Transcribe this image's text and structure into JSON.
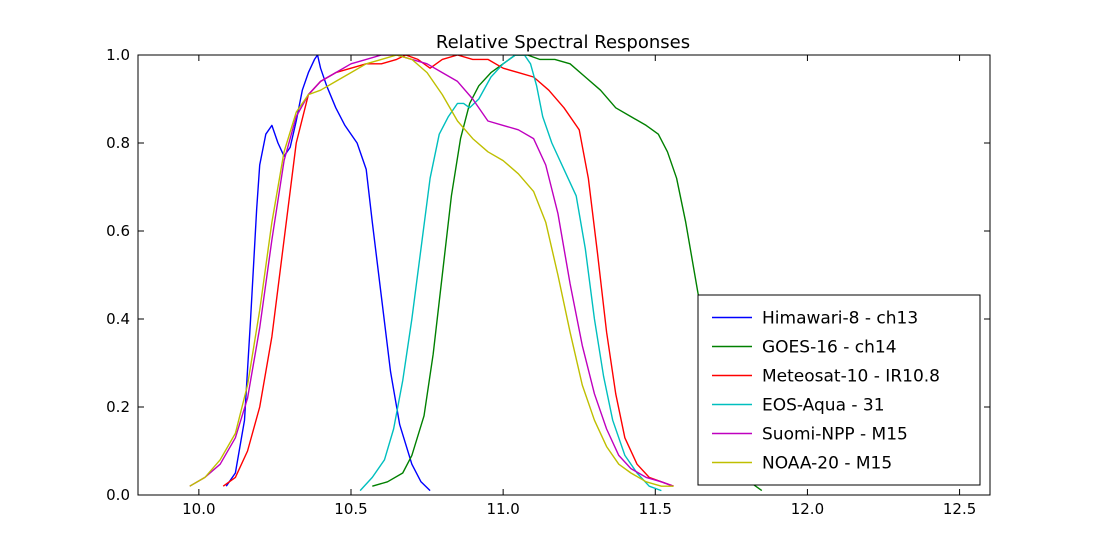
{
  "chart_data": {
    "type": "line",
    "title": "Relative Spectral Responses",
    "xlabel": "",
    "ylabel": "",
    "xlim": [
      9.8,
      12.6
    ],
    "ylim": [
      0.0,
      1.0
    ],
    "xticks": [
      10.0,
      10.5,
      11.0,
      11.5,
      12.0,
      12.5
    ],
    "xtick_labels": [
      "10.0",
      "10.5",
      "11.0",
      "11.5",
      "12.0",
      "12.5"
    ],
    "yticks": [
      0.0,
      0.2,
      0.4,
      0.6,
      0.8,
      1.0
    ],
    "ytick_labels": [
      "0.0",
      "0.2",
      "0.4",
      "0.6",
      "0.8",
      "1.0"
    ],
    "grid": false,
    "legend_position": "lower-right",
    "series": [
      {
        "name": "Himawari-8 - ch13",
        "color": "#0000ff",
        "x": [
          10.09,
          10.12,
          10.15,
          10.17,
          10.19,
          10.2,
          10.22,
          10.24,
          10.26,
          10.28,
          10.3,
          10.32,
          10.34,
          10.36,
          10.38,
          10.39,
          10.4,
          10.42,
          10.45,
          10.48,
          10.52,
          10.55,
          10.57,
          10.6,
          10.63,
          10.66,
          10.7,
          10.73,
          10.76
        ],
        "y": [
          0.02,
          0.05,
          0.17,
          0.4,
          0.65,
          0.75,
          0.82,
          0.84,
          0.8,
          0.77,
          0.79,
          0.85,
          0.92,
          0.96,
          0.99,
          1.0,
          0.97,
          0.93,
          0.88,
          0.84,
          0.8,
          0.74,
          0.62,
          0.45,
          0.28,
          0.16,
          0.07,
          0.03,
          0.01
        ]
      },
      {
        "name": "GOES-16 - ch14",
        "color": "#008000",
        "x": [
          10.57,
          10.62,
          10.67,
          10.7,
          10.74,
          10.77,
          10.8,
          10.83,
          10.86,
          10.89,
          10.92,
          10.96,
          11.0,
          11.04,
          11.08,
          11.12,
          11.17,
          11.22,
          11.27,
          11.32,
          11.37,
          11.42,
          11.47,
          11.51,
          11.54,
          11.57,
          11.6,
          11.63,
          11.66,
          11.69,
          11.72,
          11.75,
          11.78,
          11.81,
          11.85
        ],
        "y": [
          0.02,
          0.03,
          0.05,
          0.09,
          0.18,
          0.32,
          0.5,
          0.68,
          0.81,
          0.89,
          0.93,
          0.96,
          0.98,
          1.0,
          1.0,
          0.99,
          0.99,
          0.98,
          0.95,
          0.92,
          0.88,
          0.86,
          0.84,
          0.82,
          0.78,
          0.72,
          0.62,
          0.5,
          0.38,
          0.27,
          0.18,
          0.1,
          0.05,
          0.03,
          0.01
        ]
      },
      {
        "name": "Meteosat-10 - IR10.8",
        "color": "#ff0000",
        "x": [
          10.08,
          10.12,
          10.16,
          10.2,
          10.24,
          10.28,
          10.32,
          10.36,
          10.4,
          10.45,
          10.5,
          10.55,
          10.6,
          10.65,
          10.68,
          10.72,
          10.76,
          10.8,
          10.85,
          10.9,
          10.95,
          11.0,
          11.05,
          11.1,
          11.15,
          11.2,
          11.25,
          11.28,
          11.31,
          11.34,
          11.37,
          11.4,
          11.44,
          11.48,
          11.52,
          11.56
        ],
        "y": [
          0.02,
          0.04,
          0.1,
          0.2,
          0.36,
          0.58,
          0.8,
          0.91,
          0.94,
          0.96,
          0.97,
          0.98,
          0.98,
          0.99,
          1.0,
          0.99,
          0.97,
          0.99,
          1.0,
          0.99,
          0.99,
          0.97,
          0.96,
          0.95,
          0.92,
          0.88,
          0.83,
          0.72,
          0.55,
          0.37,
          0.23,
          0.13,
          0.07,
          0.04,
          0.03,
          0.02
        ]
      },
      {
        "name": "EOS-Aqua - 31",
        "color": "#00bfbf",
        "x": [
          10.53,
          10.57,
          10.61,
          10.64,
          10.67,
          10.7,
          10.73,
          10.76,
          10.79,
          10.82,
          10.85,
          10.87,
          10.89,
          10.92,
          10.96,
          11.0,
          11.04,
          11.07,
          11.09,
          11.11,
          11.13,
          11.16,
          11.2,
          11.24,
          11.27,
          11.3,
          11.33,
          11.36,
          11.4,
          11.44,
          11.48,
          11.52
        ],
        "y": [
          0.01,
          0.04,
          0.08,
          0.15,
          0.26,
          0.4,
          0.56,
          0.72,
          0.82,
          0.86,
          0.89,
          0.89,
          0.88,
          0.9,
          0.95,
          0.98,
          1.0,
          1.0,
          0.98,
          0.93,
          0.86,
          0.8,
          0.74,
          0.68,
          0.56,
          0.4,
          0.27,
          0.17,
          0.09,
          0.05,
          0.02,
          0.01
        ]
      },
      {
        "name": "Suomi-NPP - M15",
        "color": "#bf00bf",
        "x": [
          9.97,
          10.02,
          10.07,
          10.12,
          10.16,
          10.2,
          10.24,
          10.28,
          10.32,
          10.36,
          10.4,
          10.45,
          10.5,
          10.55,
          10.6,
          10.65,
          10.7,
          10.75,
          10.8,
          10.85,
          10.9,
          10.95,
          11.0,
          11.05,
          11.1,
          11.14,
          11.18,
          11.22,
          11.26,
          11.3,
          11.34,
          11.38,
          11.42,
          11.47,
          11.52,
          11.56
        ],
        "y": [
          0.02,
          0.04,
          0.07,
          0.13,
          0.22,
          0.38,
          0.58,
          0.76,
          0.86,
          0.91,
          0.94,
          0.96,
          0.98,
          0.99,
          1.0,
          1.0,
          0.99,
          0.98,
          0.96,
          0.94,
          0.9,
          0.85,
          0.84,
          0.83,
          0.81,
          0.75,
          0.64,
          0.48,
          0.34,
          0.23,
          0.15,
          0.09,
          0.06,
          0.04,
          0.03,
          0.02
        ]
      },
      {
        "name": "NOAA-20 - M15",
        "color": "#bfbf00",
        "x": [
          9.97,
          10.02,
          10.07,
          10.12,
          10.16,
          10.2,
          10.24,
          10.28,
          10.32,
          10.36,
          10.4,
          10.45,
          10.5,
          10.55,
          10.6,
          10.65,
          10.7,
          10.75,
          10.8,
          10.85,
          10.9,
          10.95,
          11.0,
          11.05,
          11.1,
          11.14,
          11.18,
          11.22,
          11.26,
          11.3,
          11.34,
          11.38,
          11.42,
          11.47,
          11.52,
          11.56
        ],
        "y": [
          0.02,
          0.04,
          0.08,
          0.14,
          0.25,
          0.42,
          0.62,
          0.78,
          0.87,
          0.91,
          0.92,
          0.94,
          0.96,
          0.98,
          0.99,
          1.0,
          0.99,
          0.96,
          0.91,
          0.85,
          0.81,
          0.78,
          0.76,
          0.73,
          0.69,
          0.62,
          0.5,
          0.37,
          0.25,
          0.17,
          0.11,
          0.07,
          0.05,
          0.03,
          0.02,
          0.02
        ]
      }
    ]
  }
}
